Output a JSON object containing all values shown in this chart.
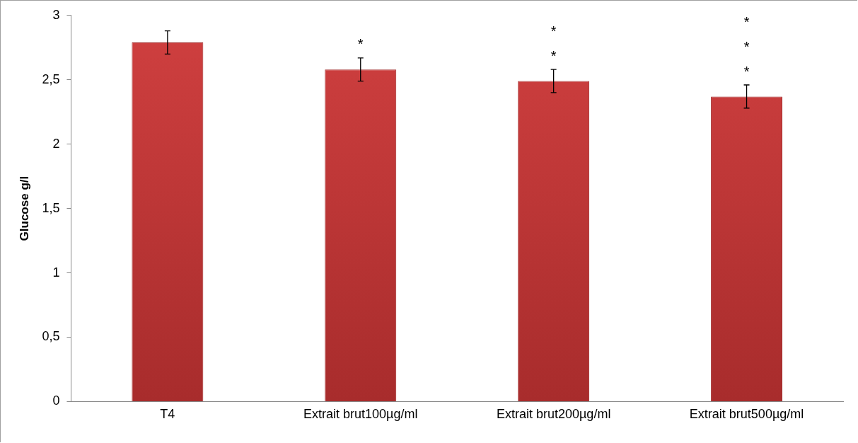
{
  "chart_data": {
    "type": "bar",
    "ylabel": "Glucose g/l",
    "categories": [
      "T4",
      "Extrait brut100µg/ml",
      "Extrait brut200µg/ml",
      "Extrait brut500µg/ml"
    ],
    "values": [
      2.79,
      2.58,
      2.49,
      2.37
    ],
    "errors": [
      0.09,
      0.09,
      0.09,
      0.09
    ],
    "color": "#d04040",
    "ylim": [
      0,
      3
    ],
    "yticks": [
      {
        "value": 0,
        "label": "0"
      },
      {
        "value": 0.5,
        "label": "0,5"
      },
      {
        "value": 1,
        "label": "1"
      },
      {
        "value": 1.5,
        "label": "1,5"
      },
      {
        "value": 2,
        "label": "2"
      },
      {
        "value": 2.5,
        "label": "2,5"
      },
      {
        "value": 3,
        "label": "3"
      }
    ],
    "annotations": [
      "*",
      "*\n*",
      "*\n*\n*"
    ],
    "grid": false,
    "legend": false
  }
}
